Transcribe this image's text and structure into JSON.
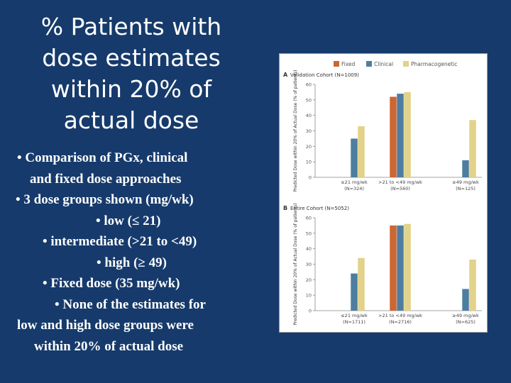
{
  "slide": {
    "title_lines": [
      "% Patients with",
      "dose estimates",
      "within 20% of",
      "actual dose"
    ],
    "bullets": [
      {
        "text": "• Comparison of PGx, clinical",
        "indent": 12
      },
      {
        "text": "and fixed dose approaches",
        "indent": 30
      },
      {
        "text": "• 3 dose groups shown (mg/wk)",
        "indent": 10
      },
      {
        "text": "• low  (≤ 21)",
        "indent": 123
      },
      {
        "text": "• intermediate (>21 to <49)",
        "indent": 48
      },
      {
        "text": "• high (≥ 49)",
        "indent": 124
      },
      {
        "text": "• Fixed dose (35 mg/wk)",
        "indent": 48
      },
      {
        "text": "• None of the estimates for",
        "indent": 65
      },
      {
        "text": "low and high dose groups were",
        "indent": 12
      },
      {
        "text": "within 20% of actual dose",
        "indent": 36
      }
    ]
  },
  "chart_data": {
    "legend": [
      {
        "name": "Fixed",
        "color": "#cc6633"
      },
      {
        "name": "Clinical",
        "color": "#4d7ea0"
      },
      {
        "name": "Pharmacogenetic",
        "color": "#e2d28a"
      }
    ],
    "ylabel": "Predicted Dose within 20% of Actual Dose (% of patients)",
    "ylim": [
      0,
      60
    ],
    "yticks": [
      0,
      10,
      20,
      30,
      40,
      50,
      60
    ],
    "panels": [
      {
        "type": "bar",
        "letter": "A",
        "title": "Validation Cohort (N=1009)",
        "categories": [
          {
            "line1": "≤21 mg/wk",
            "line2": "(N=324)"
          },
          {
            "line1": ">21 to <49 mg/wk",
            "line2": "(N=560)"
          },
          {
            "line1": "≥49 mg/wk",
            "line2": "(N=125)"
          }
        ],
        "series": [
          {
            "name": "Fixed",
            "values": [
              0,
              52,
              0
            ]
          },
          {
            "name": "Clinical",
            "values": [
              25,
              54,
              11
            ]
          },
          {
            "name": "Pharmacogenetic",
            "values": [
              33,
              55,
              37
            ]
          }
        ]
      },
      {
        "type": "bar",
        "letter": "B",
        "title": "Entire Cohort (N=5052)",
        "categories": [
          {
            "line1": "≤21 mg/wk",
            "line2": "(N=1711)"
          },
          {
            "line1": ">21 to <49 mg/wk",
            "line2": "(N=2716)"
          },
          {
            "line1": "≥49 mg/wk",
            "line2": "(N=625)"
          }
        ],
        "series": [
          {
            "name": "Fixed",
            "values": [
              0,
              55,
              0
            ]
          },
          {
            "name": "Clinical",
            "values": [
              24,
              55,
              14
            ]
          },
          {
            "name": "Pharmacogenetic",
            "values": [
              34,
              56,
              33
            ]
          }
        ]
      }
    ]
  }
}
